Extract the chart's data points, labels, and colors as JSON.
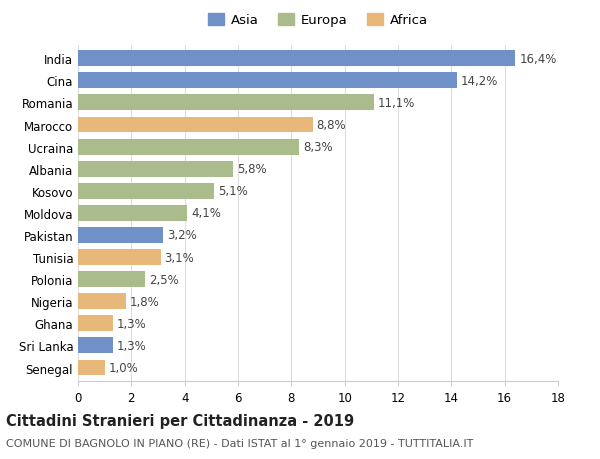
{
  "countries": [
    "India",
    "Cina",
    "Romania",
    "Marocco",
    "Ucraina",
    "Albania",
    "Kosovo",
    "Moldova",
    "Pakistan",
    "Tunisia",
    "Polonia",
    "Nigeria",
    "Ghana",
    "Sri Lanka",
    "Senegal"
  ],
  "values": [
    16.4,
    14.2,
    11.1,
    8.8,
    8.3,
    5.8,
    5.1,
    4.1,
    3.2,
    3.1,
    2.5,
    1.8,
    1.3,
    1.3,
    1.0
  ],
  "labels": [
    "16,4%",
    "14,2%",
    "11,1%",
    "8,8%",
    "8,3%",
    "5,8%",
    "5,1%",
    "4,1%",
    "3,2%",
    "3,1%",
    "2,5%",
    "1,8%",
    "1,3%",
    "1,3%",
    "1,0%"
  ],
  "continents": [
    "Asia",
    "Asia",
    "Europa",
    "Africa",
    "Europa",
    "Europa",
    "Europa",
    "Europa",
    "Asia",
    "Africa",
    "Europa",
    "Africa",
    "Africa",
    "Asia",
    "Africa"
  ],
  "colors": {
    "Asia": "#7090c8",
    "Europa": "#aabb8c",
    "Africa": "#e8b87a"
  },
  "title": "Cittadini Stranieri per Cittadinanza - 2019",
  "subtitle": "COMUNE DI BAGNOLO IN PIANO (RE) - Dati ISTAT al 1° gennaio 2019 - TUTTITALIA.IT",
  "xlim": [
    0,
    18
  ],
  "xticks": [
    0,
    2,
    4,
    6,
    8,
    10,
    12,
    14,
    16,
    18
  ],
  "background_color": "#ffffff",
  "grid_color": "#dddddd",
  "bar_height": 0.72,
  "label_fontsize": 8.5,
  "ytick_fontsize": 8.5,
  "xtick_fontsize": 8.5,
  "title_fontsize": 10.5,
  "subtitle_fontsize": 8.0,
  "legend_fontsize": 9.5
}
